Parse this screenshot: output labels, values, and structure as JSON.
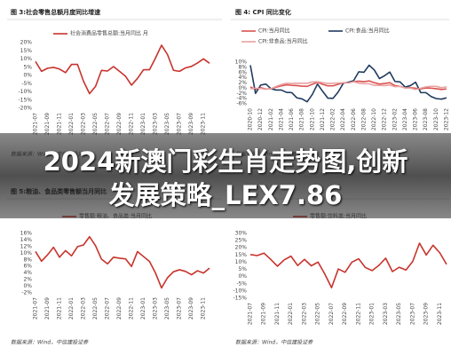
{
  "banner": "2024新澳门彩生肖走势图,创新发展策略_LEX7.86",
  "chart_data": [
    {
      "type": "line",
      "title": "图 3:社会零售总额月度同比增速",
      "source": "数据来源：Wind，中信建投证券",
      "categories": [
        "2021-07",
        null,
        "2021-09",
        null,
        "2021-11",
        null,
        "2022-01",
        null,
        "2022-03",
        null,
        "2022-05",
        null,
        "2022-07",
        null,
        "2022-09",
        null,
        "2022-11",
        null,
        "2023-01",
        null,
        "2023-03",
        null,
        "2023-05",
        null,
        "2023-07",
        null,
        "2023-09",
        null,
        "2023-11",
        null
      ],
      "series": [
        {
          "name": "社会消费品零售总额:当月同比 月",
          "color": "#c8332c",
          "values": [
            8.5,
            2.5,
            4.4,
            4.9,
            3.9,
            1.7,
            6.7,
            6.7,
            -3.5,
            -11.1,
            -6.7,
            3.1,
            2.7,
            5.4,
            2.5,
            -0.5,
            -5.9,
            -1.8,
            3.5,
            3.5,
            10.6,
            18.4,
            12.7,
            3.1,
            2.5,
            4.6,
            5.5,
            7.6,
            10.1,
            7.4
          ]
        }
      ],
      "ylim": [
        -20,
        20
      ],
      "yticks": [
        {
          "value": 20,
          "label": "20%"
        },
        {
          "value": 15,
          "label": "15%"
        },
        {
          "value": 10,
          "label": "10%"
        },
        {
          "value": 5,
          "label": "5%"
        },
        {
          "value": 0,
          "label": "0%"
        },
        {
          "value": -5,
          "label": "-5%"
        },
        {
          "value": -10,
          "label": "-10%"
        },
        {
          "value": -15,
          "label": "-15%"
        },
        {
          "value": -20,
          "label": "-20%"
        }
      ],
      "grid": false
    },
    {
      "type": "line",
      "title": "图 4: CPI 同比变化",
      "source": "数据来源：Wind，中信建投证券",
      "categories": [
        "2020-10",
        null,
        "2020-12",
        null,
        "2021-02",
        null,
        "2021-04",
        null,
        "2021-06",
        null,
        "2021-08",
        null,
        "2021-10",
        null,
        "2021-12",
        null,
        "2022-02",
        null,
        "2022-04",
        null,
        "2022-06",
        null,
        "2022-08",
        null,
        "2022-10",
        null,
        "2022-12",
        null,
        "2023-02",
        null,
        "2023-04",
        null,
        "2023-06",
        null,
        "2023-08",
        null,
        "2023-10",
        null,
        "2023-12"
      ],
      "series": [
        {
          "name": "CPI:当月同比",
          "color": "#d9534f",
          "values": [
            0.5,
            -0.5,
            0.2,
            -0.3,
            -0.2,
            0.4,
            0.9,
            1.3,
            1.1,
            1.0,
            0.8,
            0.7,
            1.5,
            2.3,
            1.5,
            0.9,
            0.9,
            1.5,
            2.1,
            2.1,
            2.5,
            2.7,
            2.5,
            2.8,
            2.1,
            1.6,
            1.8,
            2.1,
            1.0,
            0.7,
            0.1,
            0.2,
            0.0,
            -0.3,
            0.1,
            0.0,
            -0.2,
            -0.5,
            -0.3
          ]
        },
        {
          "name": "CPI:食品:当月同比",
          "color": "#1f3a5f",
          "values": [
            8.8,
            -2.0,
            1.2,
            1.6,
            -0.2,
            -0.7,
            -0.7,
            -1.6,
            -1.7,
            -3.7,
            -4.1,
            -5.2,
            -2.4,
            1.6,
            -1.2,
            -3.8,
            -3.9,
            -1.5,
            1.9,
            2.3,
            2.9,
            6.3,
            6.1,
            8.8,
            7.0,
            3.7,
            4.8,
            6.2,
            2.6,
            2.4,
            0.4,
            1.0,
            2.3,
            -1.7,
            -1.7,
            -3.2,
            -4.0,
            -4.2,
            -3.7
          ]
        },
        {
          "name": "CPI:非食品:当月同比",
          "color": "#eaa1a1",
          "values": [
            -0.3,
            0.0,
            -0.1,
            -0.4,
            -0.2,
            0.7,
            1.4,
            1.9,
            1.8,
            1.9,
            1.9,
            1.9,
            2.4,
            2.5,
            2.1,
            1.8,
            1.9,
            2.0,
            2.1,
            2.0,
            2.5,
            1.9,
            1.7,
            1.7,
            1.1,
            1.1,
            1.0,
            1.2,
            0.6,
            0.7,
            0.1,
            0.0,
            -0.5,
            0.0,
            0.5,
            0.7,
            0.7,
            0.2,
            0.5
          ]
        }
      ],
      "ylim": [
        -6,
        10
      ],
      "yticks": [
        {
          "value": 10,
          "label": "10%"
        },
        {
          "value": 8,
          "label": "8%"
        },
        {
          "value": 6,
          "label": "6%"
        },
        {
          "value": 4,
          "label": "4%"
        },
        {
          "value": 2,
          "label": "2%"
        },
        {
          "value": 0,
          "label": "0%"
        },
        {
          "value": -2,
          "label": "-2%"
        },
        {
          "value": -4,
          "label": "-4%"
        },
        {
          "value": -6,
          "label": "-6%"
        }
      ],
      "grid": false
    },
    {
      "type": "line",
      "title": "图 5:粮油、食品类零售额当月同比",
      "source": "数据来源：Wind，中信建投证券",
      "categories": [
        "2021-07",
        null,
        "2021-09",
        null,
        "2021-11",
        null,
        "2022-01",
        null,
        "2022-03",
        null,
        "2022-05",
        null,
        "2022-07",
        null,
        "2022-09",
        null,
        "2022-11",
        null,
        "2023-01",
        null,
        "2023-03",
        null,
        "2023-05",
        null,
        "2023-07",
        null,
        "2023-09",
        null,
        "2023-11",
        null
      ],
      "series": [
        {
          "name": "零售额:粮油、食品类:当月同比",
          "color": "#c8332c",
          "values": [
            10.5,
            7.6,
            9.5,
            11.8,
            8.8,
            10.8,
            9.2,
            12.0,
            12.5,
            15.0,
            12.3,
            8.2,
            6.8,
            8.8,
            8.5,
            8.3,
            6.0,
            10.5,
            9.0,
            7.5,
            4.0,
            -0.5,
            2.6,
            4.4,
            5.0,
            4.5,
            3.5,
            4.7,
            4.0,
            5.5
          ]
        }
      ],
      "ylim": [
        -2,
        16
      ],
      "yticks": [
        {
          "value": 16,
          "label": "16%"
        },
        {
          "value": 14,
          "label": "14%"
        },
        {
          "value": 12,
          "label": "12%"
        },
        {
          "value": 10,
          "label": "10%"
        },
        {
          "value": 8,
          "label": "8%"
        },
        {
          "value": 6,
          "label": "6%"
        },
        {
          "value": 4,
          "label": "4%"
        },
        {
          "value": 2,
          "label": "2%"
        },
        {
          "value": 0,
          "label": "0%"
        },
        {
          "value": -2,
          "label": "-2%"
        }
      ],
      "grid": false
    },
    {
      "type": "line",
      "source": "数据来源：Wind，中信建投证券",
      "categories": [
        "2021-07",
        null,
        "2021-09",
        null,
        "2021-11",
        null,
        "2022-01",
        null,
        "2022-03",
        null,
        "2022-05",
        null,
        "2022-07",
        null,
        "2022-09",
        null,
        "2022-11",
        null,
        "2023-01",
        null,
        "2023-03",
        null,
        "2023-05",
        null,
        "2023-07",
        null,
        "2023-09",
        null,
        "2023-11",
        null
      ],
      "series": [
        {
          "name": "零售额:饮料类:当月同比",
          "color": "#c8332c",
          "values": [
            15.3,
            14.6,
            16.3,
            12.0,
            7.2,
            11.6,
            14.2,
            7.7,
            12.0,
            7.5,
            10.1,
            1.8,
            -7.7,
            5.3,
            3.0,
            10.0,
            12.4,
            6.3,
            4.2,
            7.8,
            12.8,
            3.5,
            6.5,
            4.6,
            10.6,
            23.2,
            15.0,
            21.8,
            16.5,
            8.5
          ]
        }
      ],
      "ylim": [
        -15,
        30
      ],
      "yticks": [
        {
          "value": 30,
          "label": "30%"
        },
        {
          "value": 25,
          "label": "25%"
        },
        {
          "value": 20,
          "label": "20%"
        },
        {
          "value": 15,
          "label": "15%"
        },
        {
          "value": 10,
          "label": "10%"
        },
        {
          "value": 5,
          "label": "5%"
        },
        {
          "value": 0,
          "label": "0%"
        },
        {
          "value": -5,
          "label": "-5%"
        },
        {
          "value": -10,
          "label": "-10%"
        },
        {
          "value": -15,
          "label": "-15%"
        }
      ],
      "grid": false
    }
  ]
}
